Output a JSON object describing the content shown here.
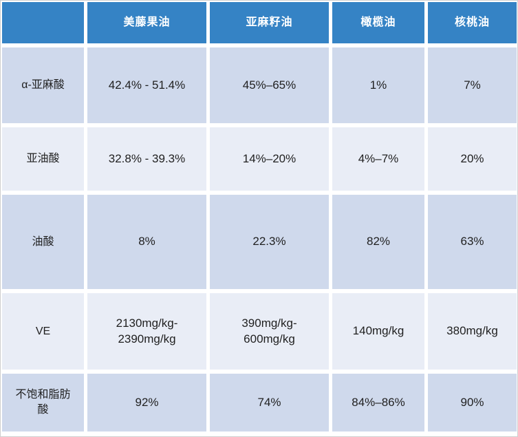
{
  "chart_data": {
    "type": "table",
    "title": "",
    "corner_label": "",
    "columns": [
      "美藤果油",
      "亚麻籽油",
      "橄榄油",
      "核桃油"
    ],
    "rows": [
      {
        "label": "α-亚麻酸",
        "values": [
          "42.4% - 51.4%",
          "45%–65%",
          "1%",
          "7%"
        ]
      },
      {
        "label": "亚油酸",
        "values": [
          "32.8% - 39.3%",
          "14%–20%",
          "4%–7%",
          "20%"
        ]
      },
      {
        "label": "油酸",
        "values": [
          "8%",
          "22.3%",
          "82%",
          "63%"
        ]
      },
      {
        "label": "VE",
        "values": [
          "2130mg/kg-\n2390mg/kg",
          "390mg/kg-\n600mg/kg",
          "140mg/kg",
          "380mg/kg"
        ]
      },
      {
        "label": "不饱和脂肪\n酸",
        "values": [
          "92%",
          "74%",
          "84%–86%",
          "90%"
        ]
      }
    ],
    "layout": {
      "banding": "rows 1,3,5 dark lavender; rows 2,4 light lavender",
      "grid": "white gutters between all cells",
      "header_position": "top row, blue, first column corner blank"
    }
  },
  "colors": {
    "header_bg": "#3583C5",
    "header_text": "#FFFFFF",
    "row_dark": "#CFD9EC",
    "row_light": "#E9EDF6",
    "cell_text": "#1F1F1F",
    "gutter": "#FFFFFF",
    "frame_border": "#CFCFCF"
  }
}
